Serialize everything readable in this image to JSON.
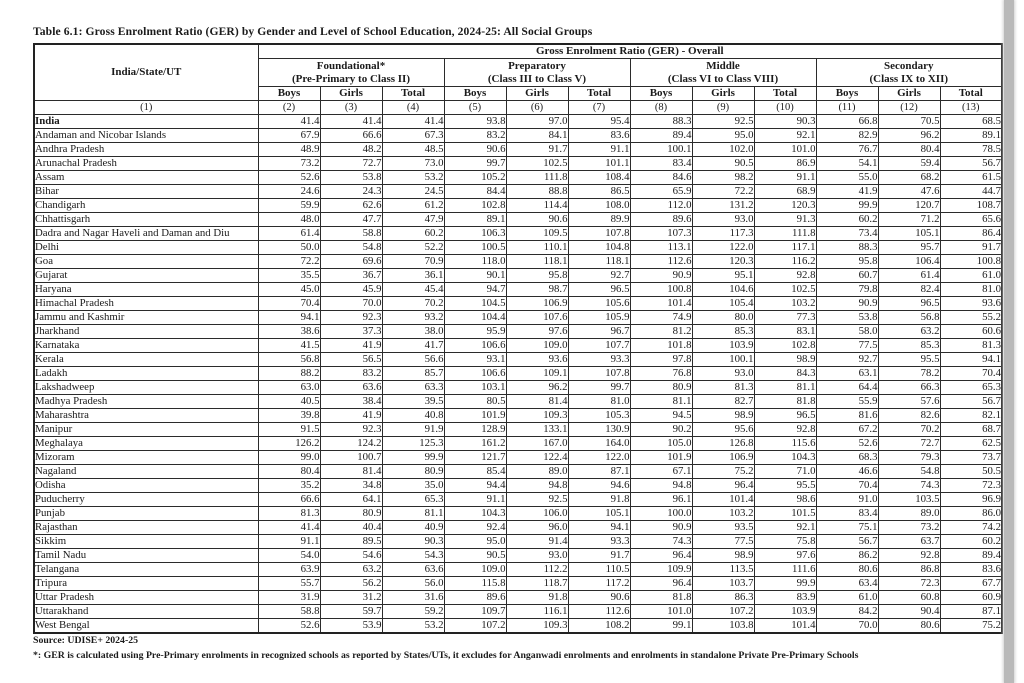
{
  "title": "Table 6.1: Gross Enrolment Ratio (GER) by Gender and Level of School Education, 2024-25: All Social Groups",
  "headers": {
    "state_col": "India/State/UT",
    "overall": "Gross Enrolment Ratio (GER) - Overall",
    "groups": [
      {
        "name": "Foundational*",
        "sub": "(Pre-Primary to Class II)"
      },
      {
        "name": "Preparatory",
        "sub": "(Class III to Class V)"
      },
      {
        "name": "Middle",
        "sub": "(Class VI to Class VIII)"
      },
      {
        "name": "Secondary",
        "sub": "(Class IX to XII)"
      }
    ],
    "gender_cols": [
      "Boys",
      "Girls",
      "Total"
    ],
    "col_numbers": [
      "(1)",
      "(2)",
      "(3)",
      "(4)",
      "(5)",
      "(6)",
      "(7)",
      "(8)",
      "(9)",
      "(10)",
      "(11)",
      "(12)",
      "(13)"
    ]
  },
  "table": {
    "rows": [
      {
        "name": "India",
        "bold": true,
        "values": [
          "41.4",
          "41.4",
          "41.4",
          "93.8",
          "97.0",
          "95.4",
          "88.3",
          "92.5",
          "90.3",
          "66.8",
          "70.5",
          "68.5"
        ]
      },
      {
        "name": "Andaman and Nicobar Islands",
        "bold": false,
        "values": [
          "67.9",
          "66.6",
          "67.3",
          "83.2",
          "84.1",
          "83.6",
          "89.4",
          "95.0",
          "92.1",
          "82.9",
          "96.2",
          "89.1"
        ]
      },
      {
        "name": "Andhra Pradesh",
        "bold": false,
        "values": [
          "48.9",
          "48.2",
          "48.5",
          "90.6",
          "91.7",
          "91.1",
          "100.1",
          "102.0",
          "101.0",
          "76.7",
          "80.4",
          "78.5"
        ]
      },
      {
        "name": "Arunachal Pradesh",
        "bold": false,
        "values": [
          "73.2",
          "72.7",
          "73.0",
          "99.7",
          "102.5",
          "101.1",
          "83.4",
          "90.5",
          "86.9",
          "54.1",
          "59.4",
          "56.7"
        ]
      },
      {
        "name": "Assam",
        "bold": false,
        "values": [
          "52.6",
          "53.8",
          "53.2",
          "105.2",
          "111.8",
          "108.4",
          "84.6",
          "98.2",
          "91.1",
          "55.0",
          "68.2",
          "61.5"
        ]
      },
      {
        "name": "Bihar",
        "bold": false,
        "values": [
          "24.6",
          "24.3",
          "24.5",
          "84.4",
          "88.8",
          "86.5",
          "65.9",
          "72.2",
          "68.9",
          "41.9",
          "47.6",
          "44.7"
        ]
      },
      {
        "name": "Chandigarh",
        "bold": false,
        "values": [
          "59.9",
          "62.6",
          "61.2",
          "102.8",
          "114.4",
          "108.0",
          "112.0",
          "131.2",
          "120.3",
          "99.9",
          "120.7",
          "108.7"
        ]
      },
      {
        "name": "Chhattisgarh",
        "bold": false,
        "values": [
          "48.0",
          "47.7",
          "47.9",
          "89.1",
          "90.6",
          "89.9",
          "89.6",
          "93.0",
          "91.3",
          "60.2",
          "71.2",
          "65.6"
        ]
      },
      {
        "name": "Dadra and Nagar Haveli and Daman and Diu",
        "bold": false,
        "values": [
          "61.4",
          "58.8",
          "60.2",
          "106.3",
          "109.5",
          "107.8",
          "107.3",
          "117.3",
          "111.8",
          "73.4",
          "105.1",
          "86.4"
        ]
      },
      {
        "name": "Delhi",
        "bold": false,
        "values": [
          "50.0",
          "54.8",
          "52.2",
          "100.5",
          "110.1",
          "104.8",
          "113.1",
          "122.0",
          "117.1",
          "88.3",
          "95.7",
          "91.7"
        ]
      },
      {
        "name": "Goa",
        "bold": false,
        "values": [
          "72.2",
          "69.6",
          "70.9",
          "118.0",
          "118.1",
          "118.1",
          "112.6",
          "120.3",
          "116.2",
          "95.8",
          "106.4",
          "100.8"
        ]
      },
      {
        "name": "Gujarat",
        "bold": false,
        "values": [
          "35.5",
          "36.7",
          "36.1",
          "90.1",
          "95.8",
          "92.7",
          "90.9",
          "95.1",
          "92.8",
          "60.7",
          "61.4",
          "61.0"
        ]
      },
      {
        "name": "Haryana",
        "bold": false,
        "values": [
          "45.0",
          "45.9",
          "45.4",
          "94.7",
          "98.7",
          "96.5",
          "100.8",
          "104.6",
          "102.5",
          "79.8",
          "82.4",
          "81.0"
        ]
      },
      {
        "name": "Himachal Pradesh",
        "bold": false,
        "values": [
          "70.4",
          "70.0",
          "70.2",
          "104.5",
          "106.9",
          "105.6",
          "101.4",
          "105.4",
          "103.2",
          "90.9",
          "96.5",
          "93.6"
        ]
      },
      {
        "name": "Jammu and Kashmir",
        "bold": false,
        "values": [
          "94.1",
          "92.3",
          "93.2",
          "104.4",
          "107.6",
          "105.9",
          "74.9",
          "80.0",
          "77.3",
          "53.8",
          "56.8",
          "55.2"
        ]
      },
      {
        "name": "Jharkhand",
        "bold": false,
        "values": [
          "38.6",
          "37.3",
          "38.0",
          "95.9",
          "97.6",
          "96.7",
          "81.2",
          "85.3",
          "83.1",
          "58.0",
          "63.2",
          "60.6"
        ]
      },
      {
        "name": "Karnataka",
        "bold": false,
        "values": [
          "41.5",
          "41.9",
          "41.7",
          "106.6",
          "109.0",
          "107.7",
          "101.8",
          "103.9",
          "102.8",
          "77.5",
          "85.3",
          "81.3"
        ]
      },
      {
        "name": "Kerala",
        "bold": false,
        "values": [
          "56.8",
          "56.5",
          "56.6",
          "93.1",
          "93.6",
          "93.3",
          "97.8",
          "100.1",
          "98.9",
          "92.7",
          "95.5",
          "94.1"
        ]
      },
      {
        "name": "Ladakh",
        "bold": false,
        "values": [
          "88.2",
          "83.2",
          "85.7",
          "106.6",
          "109.1",
          "107.8",
          "76.8",
          "93.0",
          "84.3",
          "63.1",
          "78.2",
          "70.4"
        ]
      },
      {
        "name": "Lakshadweep",
        "bold": false,
        "values": [
          "63.0",
          "63.6",
          "63.3",
          "103.1",
          "96.2",
          "99.7",
          "80.9",
          "81.3",
          "81.1",
          "64.4",
          "66.3",
          "65.3"
        ]
      },
      {
        "name": "Madhya Pradesh",
        "bold": false,
        "values": [
          "40.5",
          "38.4",
          "39.5",
          "80.5",
          "81.4",
          "81.0",
          "81.1",
          "82.7",
          "81.8",
          "55.9",
          "57.6",
          "56.7"
        ]
      },
      {
        "name": "Maharashtra",
        "bold": false,
        "values": [
          "39.8",
          "41.9",
          "40.8",
          "101.9",
          "109.3",
          "105.3",
          "94.5",
          "98.9",
          "96.5",
          "81.6",
          "82.6",
          "82.1"
        ]
      },
      {
        "name": "Manipur",
        "bold": false,
        "values": [
          "91.5",
          "92.3",
          "91.9",
          "128.9",
          "133.1",
          "130.9",
          "90.2",
          "95.6",
          "92.8",
          "67.2",
          "70.2",
          "68.7"
        ]
      },
      {
        "name": "Meghalaya",
        "bold": false,
        "values": [
          "126.2",
          "124.2",
          "125.3",
          "161.2",
          "167.0",
          "164.0",
          "105.0",
          "126.8",
          "115.6",
          "52.6",
          "72.7",
          "62.5"
        ]
      },
      {
        "name": "Mizoram",
        "bold": false,
        "values": [
          "99.0",
          "100.7",
          "99.9",
          "121.7",
          "122.4",
          "122.0",
          "101.9",
          "106.9",
          "104.3",
          "68.3",
          "79.3",
          "73.7"
        ]
      },
      {
        "name": "Nagaland",
        "bold": false,
        "values": [
          "80.4",
          "81.4",
          "80.9",
          "85.4",
          "89.0",
          "87.1",
          "67.1",
          "75.2",
          "71.0",
          "46.6",
          "54.8",
          "50.5"
        ]
      },
      {
        "name": "Odisha",
        "bold": false,
        "values": [
          "35.2",
          "34.8",
          "35.0",
          "94.4",
          "94.8",
          "94.6",
          "94.8",
          "96.4",
          "95.5",
          "70.4",
          "74.3",
          "72.3"
        ]
      },
      {
        "name": "Puducherry",
        "bold": false,
        "values": [
          "66.6",
          "64.1",
          "65.3",
          "91.1",
          "92.5",
          "91.8",
          "96.1",
          "101.4",
          "98.6",
          "91.0",
          "103.5",
          "96.9"
        ]
      },
      {
        "name": "Punjab",
        "bold": false,
        "values": [
          "81.3",
          "80.9",
          "81.1",
          "104.3",
          "106.0",
          "105.1",
          "100.0",
          "103.2",
          "101.5",
          "83.4",
          "89.0",
          "86.0"
        ]
      },
      {
        "name": "Rajasthan",
        "bold": false,
        "values": [
          "41.4",
          "40.4",
          "40.9",
          "92.4",
          "96.0",
          "94.1",
          "90.9",
          "93.5",
          "92.1",
          "75.1",
          "73.2",
          "74.2"
        ]
      },
      {
        "name": "Sikkim",
        "bold": false,
        "values": [
          "91.1",
          "89.5",
          "90.3",
          "95.0",
          "91.4",
          "93.3",
          "74.3",
          "77.5",
          "75.8",
          "56.7",
          "63.7",
          "60.2"
        ]
      },
      {
        "name": "Tamil Nadu",
        "bold": false,
        "values": [
          "54.0",
          "54.6",
          "54.3",
          "90.5",
          "93.0",
          "91.7",
          "96.4",
          "98.9",
          "97.6",
          "86.2",
          "92.8",
          "89.4"
        ]
      },
      {
        "name": "Telangana",
        "bold": false,
        "values": [
          "63.9",
          "63.2",
          "63.6",
          "109.0",
          "112.2",
          "110.5",
          "109.9",
          "113.5",
          "111.6",
          "80.6",
          "86.8",
          "83.6"
        ]
      },
      {
        "name": "Tripura",
        "bold": false,
        "values": [
          "55.7",
          "56.2",
          "56.0",
          "115.8",
          "118.7",
          "117.2",
          "96.4",
          "103.7",
          "99.9",
          "63.4",
          "72.3",
          "67.7"
        ]
      },
      {
        "name": "Uttar Pradesh",
        "bold": false,
        "values": [
          "31.9",
          "31.2",
          "31.6",
          "89.6",
          "91.8",
          "90.6",
          "81.8",
          "86.3",
          "83.9",
          "61.0",
          "60.8",
          "60.9"
        ]
      },
      {
        "name": "Uttarakhand",
        "bold": false,
        "values": [
          "58.8",
          "59.7",
          "59.2",
          "109.7",
          "116.1",
          "112.6",
          "101.0",
          "107.2",
          "103.9",
          "84.2",
          "90.4",
          "87.1"
        ]
      },
      {
        "name": "West Bengal",
        "bold": false,
        "values": [
          "52.6",
          "53.9",
          "53.2",
          "107.2",
          "109.3",
          "108.2",
          "99.1",
          "103.8",
          "101.4",
          "70.0",
          "80.6",
          "75.2"
        ]
      }
    ]
  },
  "footer": {
    "source": "Source: UDISE+ 2024-25",
    "note": "*: GER is calculated using Pre-Primary enrolments in recognized schools as reported by States/UTs, it excludes for Anganwadi enrolments and enrolments in standalone Private Pre-Primary Schools"
  }
}
